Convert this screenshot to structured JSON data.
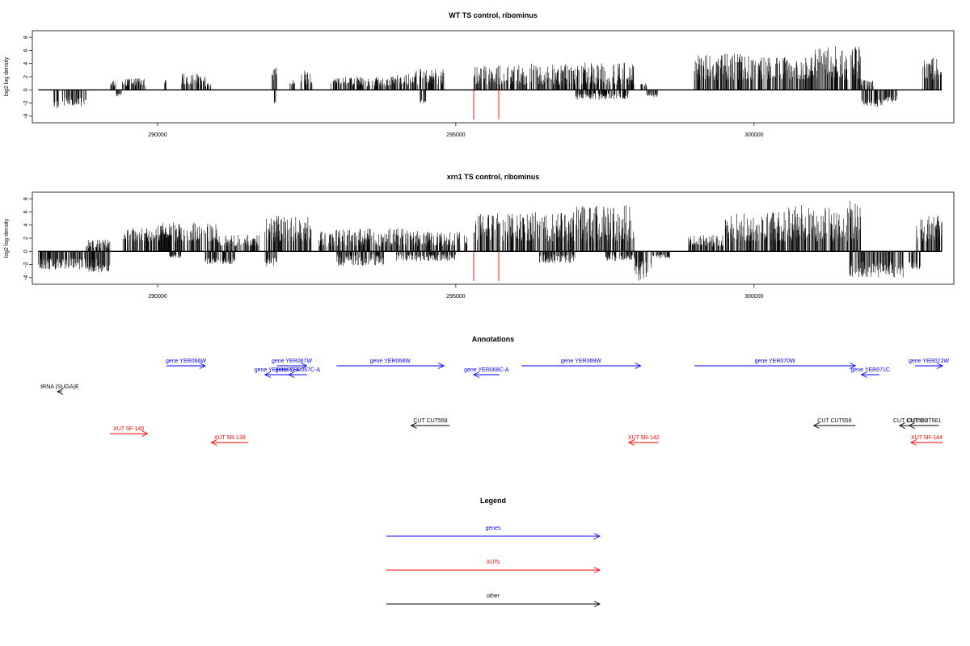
{
  "colors": {
    "genes": "#0000ff",
    "xuts": "#ff0000",
    "other": "#000000",
    "bars": "#000000",
    "highlight": "#ff0000"
  },
  "chart_data": [
    {
      "type": "bar",
      "title": "WT TS control, ribominus",
      "ylabel": "log2 log density",
      "xlim": [
        287900,
        303350
      ],
      "ylim": [
        -5,
        9
      ],
      "xticks": [
        290000,
        295000,
        300000
      ],
      "yticks": [
        -4,
        -2,
        0,
        2,
        4,
        6,
        8
      ],
      "grid": false,
      "series": [
        {
          "color": "black",
          "segments": [
            [
              288000,
              288400,
              0,
              0
            ],
            [
              288250,
              288350,
              -1.5,
              -2.8
            ],
            [
              288400,
              288800,
              -1,
              -2.5
            ],
            [
              289200,
              289300,
              0.5,
              1.5
            ],
            [
              289300,
              289400,
              -0.5,
              -1
            ],
            [
              289400,
              289800,
              0.6,
              1.8
            ],
            [
              290100,
              290150,
              1,
              2
            ],
            [
              290400,
              290800,
              0.8,
              2.5
            ],
            [
              290800,
              290900,
              0.5,
              1
            ],
            [
              291900,
              292000,
              1.5,
              3.5
            ],
            [
              291950,
              292000,
              -1.5,
              -2.2
            ],
            [
              292200,
              292300,
              0.8,
              1.5
            ],
            [
              292400,
              292600,
              0.8,
              3
            ],
            [
              292900,
              293400,
              0.7,
              2
            ],
            [
              293400,
              293900,
              0.5,
              2
            ],
            [
              293900,
              294300,
              0.7,
              2.5
            ],
            [
              294300,
              294800,
              0.8,
              3.3
            ],
            [
              294400,
              294500,
              -1.5,
              -2.2
            ],
            [
              295300,
              296000,
              0.8,
              3.8
            ],
            [
              296000,
              297000,
              0.8,
              4
            ],
            [
              297000,
              298000,
              0.8,
              4.2
            ],
            [
              297000,
              297900,
              -0.5,
              -1.5
            ],
            [
              298100,
              298200,
              0.5,
              1
            ],
            [
              298200,
              298400,
              -0.5,
              -1.2
            ],
            [
              299000,
              300000,
              1.5,
              5.5
            ],
            [
              300000,
              301000,
              1.5,
              5
            ],
            [
              301000,
              301800,
              1.5,
              6.8
            ],
            [
              301800,
              302000,
              0.5,
              1.5
            ],
            [
              301800,
              302200,
              -1.5,
              -2.6
            ],
            [
              302200,
              302400,
              -0.8,
              -1.8
            ],
            [
              302800,
              303150,
              1.5,
              5
            ]
          ]
        },
        {
          "color": "red",
          "values_x": [
            295300,
            295720
          ],
          "values_y": [
            -4.5,
            -4.5
          ]
        }
      ]
    },
    {
      "type": "bar",
      "title": "xrn1 TS control, ribominus",
      "ylabel": "log2 log density",
      "xlim": [
        287900,
        303350
      ],
      "ylim": [
        -5,
        9
      ],
      "xticks": [
        290000,
        295000,
        300000
      ],
      "yticks": [
        -4,
        -2,
        0,
        2,
        4,
        6,
        8
      ],
      "grid": false,
      "series": [
        {
          "color": "black",
          "segments": [
            [
              288000,
              289000,
              -1,
              -2.8
            ],
            [
              288800,
              289200,
              -2,
              -3.2
            ],
            [
              288800,
              289200,
              0.5,
              1.8
            ],
            [
              289400,
              290200,
              1.5,
              3.5
            ],
            [
              290200,
              290400,
              -0.5,
              -1
            ],
            [
              290000,
              291000,
              1.5,
              4.4
            ],
            [
              290800,
              291300,
              -1,
              -2
            ],
            [
              291000,
              291700,
              0.8,
              2.5
            ],
            [
              291800,
              292000,
              -1,
              -2.5
            ],
            [
              291800,
              292600,
              1.5,
              5.5
            ],
            [
              292700,
              293500,
              0.8,
              3.5
            ],
            [
              293000,
              293800,
              -0.5,
              -2.2
            ],
            [
              293500,
              294500,
              0.8,
              3.5
            ],
            [
              294000,
              295000,
              -0.5,
              -1.5
            ],
            [
              294500,
              295200,
              0.8,
              3
            ],
            [
              295300,
              296000,
              1.5,
              5.8
            ],
            [
              296000,
              297000,
              1.5,
              6
            ],
            [
              296400,
              297000,
              -0.5,
              -1.8
            ],
            [
              297000,
              298000,
              1.5,
              7
            ],
            [
              297500,
              298000,
              -0.5,
              -1.5
            ],
            [
              298000,
              298300,
              -1.5,
              -4.5
            ],
            [
              298300,
              298600,
              -0.5,
              -1.2
            ],
            [
              298900,
              299500,
              0.8,
              2.5
            ],
            [
              299500,
              300500,
              1.5,
              6
            ],
            [
              300500,
              301500,
              1.5,
              7
            ],
            [
              301500,
              301800,
              1.5,
              8.2
            ],
            [
              301600,
              302500,
              -1.5,
              -4
            ],
            [
              302600,
              302800,
              -1.5,
              -2.7
            ],
            [
              302700,
              303150,
              1.5,
              5.5
            ]
          ]
        },
        {
          "color": "red",
          "values_x": [
            295300,
            295720
          ],
          "values_y": [
            -4.5,
            -4.5
          ]
        }
      ]
    }
  ],
  "annotations": {
    "title": "Annotations",
    "genes": [
      {
        "label": "gene YER066W",
        "start": 290150,
        "end": 290800,
        "row": 0
      },
      {
        "label": "gene YER067W",
        "start": 292000,
        "end": 292500,
        "row": 0
      },
      {
        "label": "gene YER068W",
        "start": 293000,
        "end": 294800,
        "row": 0
      },
      {
        "label": "gene YER069W",
        "start": 296100,
        "end": 298100,
        "row": 0
      },
      {
        "label": "gene YER070W",
        "start": 299000,
        "end": 301700,
        "row": 0
      },
      {
        "label": "gene YER072W",
        "start": 302700,
        "end": 303160,
        "row": 0
      },
      {
        "label": "gene YER066C-A",
        "start": 291800,
        "end": 292200,
        "row": 1
      },
      {
        "label": "gene YER067C-A",
        "start": 292200,
        "end": 292500,
        "row": 1
      },
      {
        "label": "gene YER068C-A",
        "start": 295300,
        "end": 295730,
        "row": 1
      },
      {
        "label": "gene YER071C",
        "start": 301800,
        "end": 302100,
        "row": 1
      }
    ],
    "other": [
      {
        "label": "tRNA (SUGA)E",
        "start": 288320,
        "end": 288400,
        "row": 2
      },
      {
        "label": "CUT CUT558",
        "start": 294250,
        "end": 294900,
        "row": 3
      },
      {
        "label": "CUT CUT559",
        "start": 301000,
        "end": 301700,
        "row": 3
      },
      {
        "label": "CUT CUT560",
        "start": 302440,
        "end": 302800,
        "row": 3
      },
      {
        "label": "CUT CUT561",
        "start": 302600,
        "end": 303100,
        "row": 3
      }
    ],
    "xuts": [
      {
        "label": "XUT 5F-140",
        "start": 289200,
        "end": 289830,
        "row": 4,
        "dir": "right"
      },
      {
        "label": "XUT 5R-139",
        "start": 290900,
        "end": 291520,
        "row": 5,
        "dir": "left"
      },
      {
        "label": "XUT 5R-142",
        "start": 297900,
        "end": 298400,
        "row": 5,
        "dir": "left"
      },
      {
        "label": "XUT 5R-144",
        "start": 302630,
        "end": 303160,
        "row": 5,
        "dir": "left"
      }
    ]
  },
  "legend": {
    "title": "Legend",
    "items": [
      {
        "label": "genes",
        "color": "#0000ff"
      },
      {
        "label": "XUTs",
        "color": "#ff0000"
      },
      {
        "label": "other",
        "color": "#000000"
      }
    ]
  }
}
